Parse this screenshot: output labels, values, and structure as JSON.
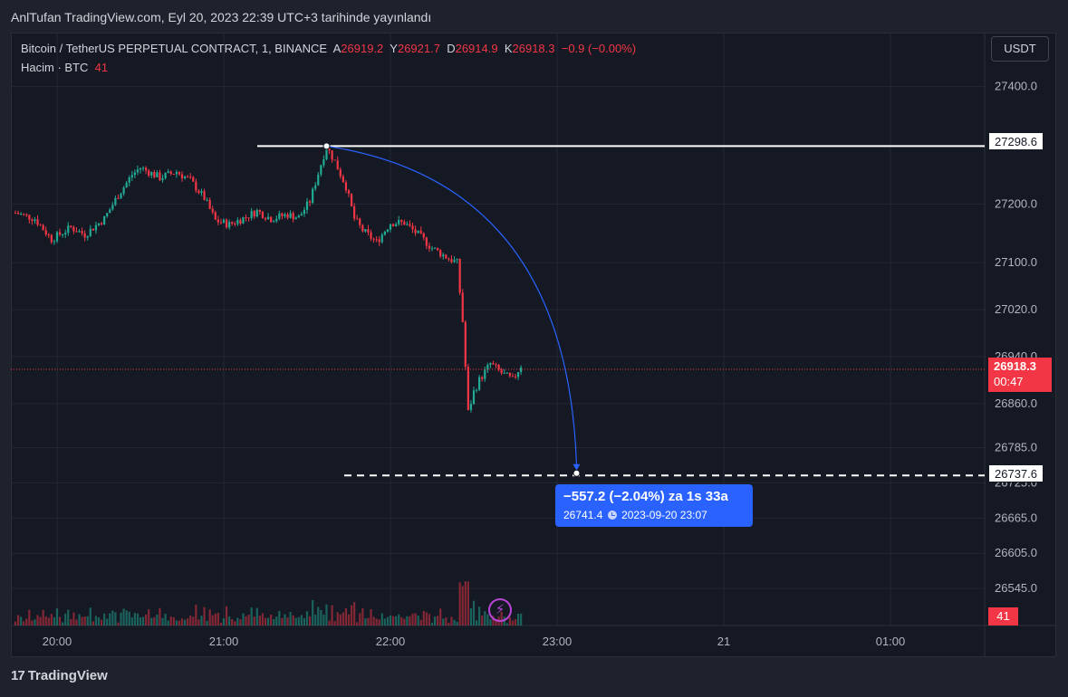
{
  "header": {
    "published": "AnlTufan TradingView.com, Eyl 20, 2023 22:39 UTC+3 tarihinde yayınlandı"
  },
  "legend": {
    "symbol": "Bitcoin / TetherUS PERPETUAL CONTRACT, 1, BINANCE",
    "o_label": "A",
    "o": "26919.2",
    "h_label": "Y",
    "h": "26921.7",
    "l_label": "D",
    "l": "26914.9",
    "c_label": "K",
    "c": "26918.3",
    "change": "−0.9 (−0.00%)",
    "volume_label": "Hacim · BTC",
    "volume_value": "41"
  },
  "currency_button": "USDT",
  "price_tags": {
    "top": "27298.6",
    "bottom": "26737.6",
    "last": "26918.3",
    "countdown": "00:47",
    "volume": "41"
  },
  "tooltip": {
    "line1": "−557.2 (−2.04%) za 1s 33a",
    "price": "26741.4",
    "datetime": "2023-09-20  23:07"
  },
  "brand": {
    "logo": "17",
    "name": "TradingView"
  },
  "colors": {
    "up": "#22ab94",
    "down": "#f23645",
    "measure": "#2962ff",
    "background": "#151924"
  },
  "icons": {
    "alert": "lightning-icon"
  },
  "chart_data": {
    "type": "candlestick",
    "symbol": "BTCUSDT.P",
    "timeframe": "1",
    "x_ticks": [
      "20:00",
      "21:00",
      "22:00",
      "23:00",
      "21",
      "01:00"
    ],
    "y_ticks": [
      "27400.0",
      "27200.0",
      "27100.0",
      "27020.0",
      "26940.0",
      "26860.0",
      "26785.0",
      "26725.0",
      "26665.0",
      "26605.0",
      "26545.0"
    ],
    "ylim": [
      26482,
      27492
    ],
    "grid": true,
    "series": [
      {
        "kind": "close_path",
        "points": [
          [
            "19:45",
            27185
          ],
          [
            "19:52",
            27175
          ],
          [
            "19:58",
            27140
          ],
          [
            "20:05",
            27160
          ],
          [
            "20:10",
            27148
          ],
          [
            "20:17",
            27175
          ],
          [
            "20:22",
            27215
          ],
          [
            "20:27",
            27250
          ],
          [
            "20:30",
            27262
          ],
          [
            "20:37",
            27245
          ],
          [
            "20:43",
            27255
          ],
          [
            "20:48",
            27240
          ],
          [
            "20:53",
            27210
          ],
          [
            "20:57",
            27172
          ],
          [
            "21:02",
            27165
          ],
          [
            "21:08",
            27178
          ],
          [
            "21:12",
            27188
          ],
          [
            "21:17",
            27175
          ],
          [
            "21:23",
            27182
          ],
          [
            "21:27",
            27177
          ],
          [
            "21:31",
            27205
          ],
          [
            "21:35",
            27268
          ],
          [
            "21:37",
            27298
          ],
          [
            "21:40",
            27272
          ],
          [
            "21:44",
            27230
          ],
          [
            "21:47",
            27175
          ],
          [
            "21:50",
            27155
          ],
          [
            "21:55",
            27135
          ],
          [
            "22:00",
            27168
          ],
          [
            "22:05",
            27168
          ],
          [
            "22:10",
            27148
          ],
          [
            "22:15",
            27125
          ],
          [
            "22:20",
            27110
          ],
          [
            "22:24",
            27100
          ],
          [
            "22:26",
            27000
          ],
          [
            "22:28",
            26845
          ],
          [
            "22:30",
            26880
          ],
          [
            "22:32",
            26900
          ],
          [
            "22:36",
            26928
          ],
          [
            "22:40",
            26912
          ],
          [
            "22:44",
            26900
          ],
          [
            "22:47",
            26925
          ]
        ]
      }
    ],
    "volume_series": {
      "name": "Hacim",
      "last": 41
    },
    "annotations": [
      {
        "type": "horizontal-line",
        "price": 27298.6
      },
      {
        "type": "horizontal-line",
        "price": 26737.6,
        "style": "dashed"
      },
      {
        "type": "last-price-line",
        "price": 26918.3
      },
      {
        "type": "arc-projection",
        "from": [
          "21:37",
          27298.6
        ],
        "to": [
          "23:07",
          26741.4
        ]
      }
    ]
  }
}
